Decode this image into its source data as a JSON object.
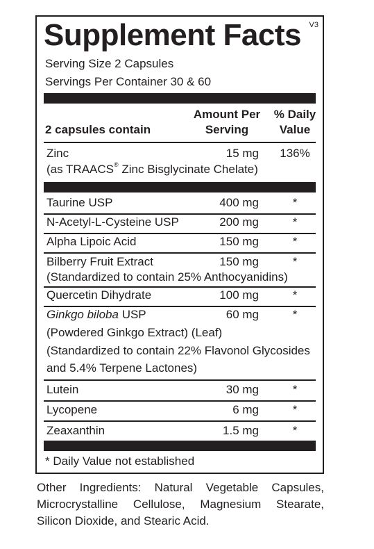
{
  "panel": {
    "title": "Supplement Facts",
    "version": "V3",
    "serving_size": "Serving Size  2 Capsules",
    "servings_per_container": "Servings Per Container  30 & 60",
    "header": {
      "contains": "2 capsules contain",
      "amount_line1": "Amount Per",
      "amount_line2": "Serving",
      "dv_line1": "% Daily",
      "dv_line2": "Value"
    },
    "zinc": {
      "name": "Zinc",
      "amount": "15 mg",
      "dv": "136%",
      "sub_prefix": "(as TRAACS",
      "sub_reg": "®",
      "sub_suffix": " Zinc Bisglycinate Chelate)"
    },
    "rows": [
      {
        "name": "Taurine USP",
        "amount": "400 mg",
        "dv": "*"
      },
      {
        "name": "N-Acetyl-L-Cysteine USP",
        "amount": "200 mg",
        "dv": "*"
      },
      {
        "name": "Alpha Lipoic Acid",
        "amount": "150 mg",
        "dv": "*"
      },
      {
        "name": "Bilberry Fruit Extract",
        "amount": "150 mg",
        "dv": "*",
        "sub": "(Standardized to contain 25% Anthocyanidins)"
      },
      {
        "name": "Quercetin Dihydrate",
        "amount": "100 mg",
        "dv": "*"
      },
      {
        "name_italic": "Ginkgo biloba",
        "name_rest": " USP",
        "amount": "60 mg",
        "dv": "*",
        "sub1": "(Powdered Ginkgo Extract) (Leaf)",
        "sub2": "(Standardized to contain 22% Flavonol Glycosides",
        "sub3": "and 5.4% Terpene Lactones)"
      },
      {
        "name": "Lutein",
        "amount": "30 mg",
        "dv": "*"
      },
      {
        "name": "Lycopene",
        "amount": "6 mg",
        "dv": "*"
      },
      {
        "name": "Zeaxanthin",
        "amount": "1.5 mg",
        "dv": "*"
      }
    ],
    "footnote": "* Daily Value not established"
  },
  "other_ingredients": "Other Ingredients: Natural Vegetable Capsules, Microcrystalline Cellulose, Magnesium Stearate, Silicon Dioxide, and Stearic Acid."
}
